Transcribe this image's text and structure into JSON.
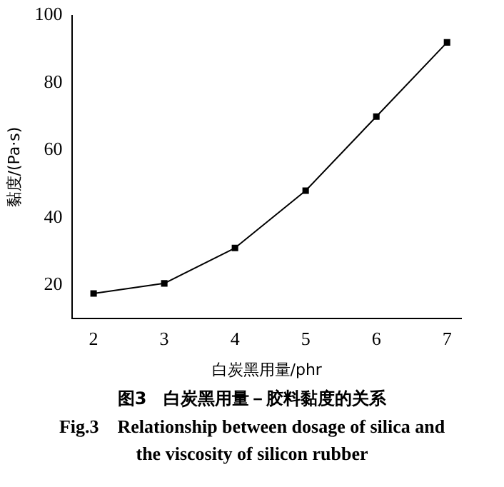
{
  "chart_data": {
    "type": "line",
    "title": "图3　白炭黑用量－胶料黏度的关系",
    "subtitle": "Fig.3　Relationship between dosage of silica and the viscosity of silicon rubber",
    "xlabel": "白炭黑用量/phr",
    "ylabel": "黏度/(Pa·s)",
    "x": [
      2,
      3,
      4,
      5,
      6,
      7
    ],
    "series": [
      {
        "color": "#000000",
        "values": [
          17.5,
          20.5,
          31,
          48,
          70,
          92
        ]
      }
    ],
    "xlim": [
      1.7,
      7.2
    ],
    "xticks": [
      2,
      3,
      4,
      5,
      6,
      7
    ],
    "ylim": [
      10,
      100
    ],
    "yticks": [
      20,
      40,
      60,
      80,
      100
    ],
    "grid": false,
    "legend": false,
    "marker": "square",
    "line_style": "solid"
  }
}
